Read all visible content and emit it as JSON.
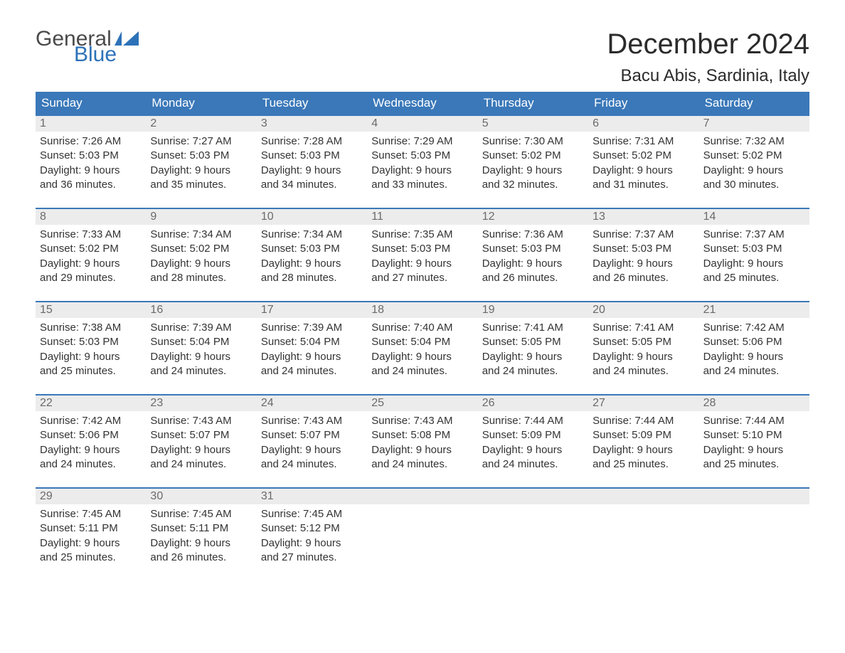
{
  "brand": {
    "word1": "General",
    "word2": "Blue",
    "text_color": "#4a4a4a",
    "accent_color": "#2d72b8",
    "flag_color": "#2d72b8"
  },
  "header": {
    "month_title": "December 2024",
    "location": "Bacu Abis, Sardinia, Italy",
    "title_color": "#2b2b2b",
    "title_fontsize": 40,
    "location_fontsize": 24
  },
  "calendar": {
    "header_bg": "#3a78b9",
    "header_fg": "#ffffff",
    "strip_bg": "#ececec",
    "week_border": "#3a78b9",
    "text_color": "#333333",
    "daynum_color": "#6a6a6a",
    "columns": 7,
    "days_of_week": [
      "Sunday",
      "Monday",
      "Tuesday",
      "Wednesday",
      "Thursday",
      "Friday",
      "Saturday"
    ],
    "weeks": [
      {
        "days": [
          {
            "num": "1",
            "sunrise": "Sunrise: 7:26 AM",
            "sunset": "Sunset: 5:03 PM",
            "daylight1": "Daylight: 9 hours",
            "daylight2": "and 36 minutes."
          },
          {
            "num": "2",
            "sunrise": "Sunrise: 7:27 AM",
            "sunset": "Sunset: 5:03 PM",
            "daylight1": "Daylight: 9 hours",
            "daylight2": "and 35 minutes."
          },
          {
            "num": "3",
            "sunrise": "Sunrise: 7:28 AM",
            "sunset": "Sunset: 5:03 PM",
            "daylight1": "Daylight: 9 hours",
            "daylight2": "and 34 minutes."
          },
          {
            "num": "4",
            "sunrise": "Sunrise: 7:29 AM",
            "sunset": "Sunset: 5:03 PM",
            "daylight1": "Daylight: 9 hours",
            "daylight2": "and 33 minutes."
          },
          {
            "num": "5",
            "sunrise": "Sunrise: 7:30 AM",
            "sunset": "Sunset: 5:02 PM",
            "daylight1": "Daylight: 9 hours",
            "daylight2": "and 32 minutes."
          },
          {
            "num": "6",
            "sunrise": "Sunrise: 7:31 AM",
            "sunset": "Sunset: 5:02 PM",
            "daylight1": "Daylight: 9 hours",
            "daylight2": "and 31 minutes."
          },
          {
            "num": "7",
            "sunrise": "Sunrise: 7:32 AM",
            "sunset": "Sunset: 5:02 PM",
            "daylight1": "Daylight: 9 hours",
            "daylight2": "and 30 minutes."
          }
        ]
      },
      {
        "days": [
          {
            "num": "8",
            "sunrise": "Sunrise: 7:33 AM",
            "sunset": "Sunset: 5:02 PM",
            "daylight1": "Daylight: 9 hours",
            "daylight2": "and 29 minutes."
          },
          {
            "num": "9",
            "sunrise": "Sunrise: 7:34 AM",
            "sunset": "Sunset: 5:02 PM",
            "daylight1": "Daylight: 9 hours",
            "daylight2": "and 28 minutes."
          },
          {
            "num": "10",
            "sunrise": "Sunrise: 7:34 AM",
            "sunset": "Sunset: 5:03 PM",
            "daylight1": "Daylight: 9 hours",
            "daylight2": "and 28 minutes."
          },
          {
            "num": "11",
            "sunrise": "Sunrise: 7:35 AM",
            "sunset": "Sunset: 5:03 PM",
            "daylight1": "Daylight: 9 hours",
            "daylight2": "and 27 minutes."
          },
          {
            "num": "12",
            "sunrise": "Sunrise: 7:36 AM",
            "sunset": "Sunset: 5:03 PM",
            "daylight1": "Daylight: 9 hours",
            "daylight2": "and 26 minutes."
          },
          {
            "num": "13",
            "sunrise": "Sunrise: 7:37 AM",
            "sunset": "Sunset: 5:03 PM",
            "daylight1": "Daylight: 9 hours",
            "daylight2": "and 26 minutes."
          },
          {
            "num": "14",
            "sunrise": "Sunrise: 7:37 AM",
            "sunset": "Sunset: 5:03 PM",
            "daylight1": "Daylight: 9 hours",
            "daylight2": "and 25 minutes."
          }
        ]
      },
      {
        "days": [
          {
            "num": "15",
            "sunrise": "Sunrise: 7:38 AM",
            "sunset": "Sunset: 5:03 PM",
            "daylight1": "Daylight: 9 hours",
            "daylight2": "and 25 minutes."
          },
          {
            "num": "16",
            "sunrise": "Sunrise: 7:39 AM",
            "sunset": "Sunset: 5:04 PM",
            "daylight1": "Daylight: 9 hours",
            "daylight2": "and 24 minutes."
          },
          {
            "num": "17",
            "sunrise": "Sunrise: 7:39 AM",
            "sunset": "Sunset: 5:04 PM",
            "daylight1": "Daylight: 9 hours",
            "daylight2": "and 24 minutes."
          },
          {
            "num": "18",
            "sunrise": "Sunrise: 7:40 AM",
            "sunset": "Sunset: 5:04 PM",
            "daylight1": "Daylight: 9 hours",
            "daylight2": "and 24 minutes."
          },
          {
            "num": "19",
            "sunrise": "Sunrise: 7:41 AM",
            "sunset": "Sunset: 5:05 PM",
            "daylight1": "Daylight: 9 hours",
            "daylight2": "and 24 minutes."
          },
          {
            "num": "20",
            "sunrise": "Sunrise: 7:41 AM",
            "sunset": "Sunset: 5:05 PM",
            "daylight1": "Daylight: 9 hours",
            "daylight2": "and 24 minutes."
          },
          {
            "num": "21",
            "sunrise": "Sunrise: 7:42 AM",
            "sunset": "Sunset: 5:06 PM",
            "daylight1": "Daylight: 9 hours",
            "daylight2": "and 24 minutes."
          }
        ]
      },
      {
        "days": [
          {
            "num": "22",
            "sunrise": "Sunrise: 7:42 AM",
            "sunset": "Sunset: 5:06 PM",
            "daylight1": "Daylight: 9 hours",
            "daylight2": "and 24 minutes."
          },
          {
            "num": "23",
            "sunrise": "Sunrise: 7:43 AM",
            "sunset": "Sunset: 5:07 PM",
            "daylight1": "Daylight: 9 hours",
            "daylight2": "and 24 minutes."
          },
          {
            "num": "24",
            "sunrise": "Sunrise: 7:43 AM",
            "sunset": "Sunset: 5:07 PM",
            "daylight1": "Daylight: 9 hours",
            "daylight2": "and 24 minutes."
          },
          {
            "num": "25",
            "sunrise": "Sunrise: 7:43 AM",
            "sunset": "Sunset: 5:08 PM",
            "daylight1": "Daylight: 9 hours",
            "daylight2": "and 24 minutes."
          },
          {
            "num": "26",
            "sunrise": "Sunrise: 7:44 AM",
            "sunset": "Sunset: 5:09 PM",
            "daylight1": "Daylight: 9 hours",
            "daylight2": "and 24 minutes."
          },
          {
            "num": "27",
            "sunrise": "Sunrise: 7:44 AM",
            "sunset": "Sunset: 5:09 PM",
            "daylight1": "Daylight: 9 hours",
            "daylight2": "and 25 minutes."
          },
          {
            "num": "28",
            "sunrise": "Sunrise: 7:44 AM",
            "sunset": "Sunset: 5:10 PM",
            "daylight1": "Daylight: 9 hours",
            "daylight2": "and 25 minutes."
          }
        ]
      },
      {
        "days": [
          {
            "num": "29",
            "sunrise": "Sunrise: 7:45 AM",
            "sunset": "Sunset: 5:11 PM",
            "daylight1": "Daylight: 9 hours",
            "daylight2": "and 25 minutes."
          },
          {
            "num": "30",
            "sunrise": "Sunrise: 7:45 AM",
            "sunset": "Sunset: 5:11 PM",
            "daylight1": "Daylight: 9 hours",
            "daylight2": "and 26 minutes."
          },
          {
            "num": "31",
            "sunrise": "Sunrise: 7:45 AM",
            "sunset": "Sunset: 5:12 PM",
            "daylight1": "Daylight: 9 hours",
            "daylight2": "and 27 minutes."
          },
          {
            "empty": true
          },
          {
            "empty": true
          },
          {
            "empty": true
          },
          {
            "empty": true
          }
        ]
      }
    ]
  }
}
